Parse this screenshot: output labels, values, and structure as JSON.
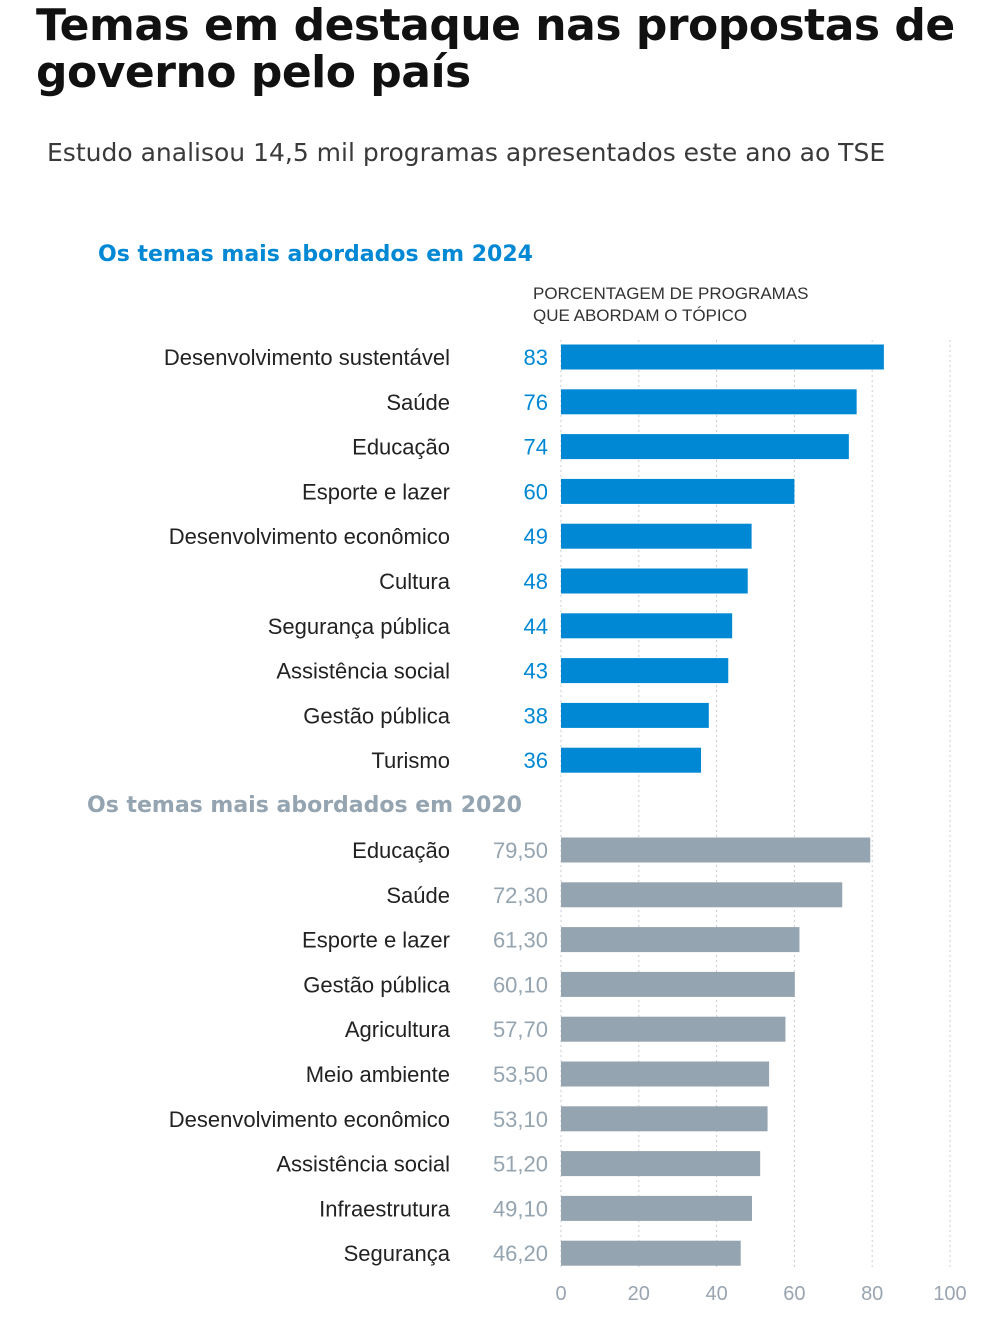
{
  "title": "Temas em destaque nas propostas de governo pelo país",
  "subtitle": "Estudo analisou 14,5 mil programas apresentados este ano ao TSE",
  "colors": {
    "bar2024": "#0088d4",
    "bar2020": "#94a4b0",
    "label2024": "#0088d4",
    "label2020": "#94a4b0"
  },
  "axis_note": [
    "PORCENTAGEM DE PROGRAMAS",
    "QUE ABORDAM O TÓPICO"
  ],
  "chart_data": [
    {
      "type": "bar",
      "orientation": "horizontal",
      "title": "Os temas mais abordados em 2024",
      "categories": [
        "Desenvolvimento sustentável",
        "Saúde",
        "Educação",
        "Esporte e lazer",
        "Desenvolvimento econômico",
        "Cultura",
        "Segurança pública",
        "Assistência social",
        "Gestão pública",
        "Turismo"
      ],
      "values": [
        83,
        76,
        74,
        60,
        49,
        48,
        44,
        43,
        38,
        36
      ],
      "value_labels": [
        "83",
        "76",
        "74",
        "60",
        "49",
        "48",
        "44",
        "43",
        "38",
        "36"
      ],
      "xlim": [
        0,
        100
      ]
    },
    {
      "type": "bar",
      "orientation": "horizontal",
      "title": "Os temas mais abordados em 2020",
      "categories": [
        "Educação",
        "Saúde",
        "Esporte e lazer",
        "Gestão pública",
        "Agricultura",
        "Meio ambiente",
        "Desenvolvimento econômico",
        "Assistência social",
        "Infraestrutura",
        "Segurança"
      ],
      "values": [
        79.5,
        72.3,
        61.3,
        60.1,
        57.7,
        53.5,
        53.1,
        51.2,
        49.1,
        46.2
      ],
      "value_labels": [
        "79,50",
        "72,30",
        "61,30",
        "60,10",
        "57,70",
        "53,50",
        "53,10",
        "51,20",
        "49,10",
        "46,20"
      ],
      "xlim": [
        0,
        100
      ]
    }
  ],
  "x_ticks": [
    "0",
    "20",
    "40",
    "60",
    "80",
    "100"
  ],
  "grid": true
}
